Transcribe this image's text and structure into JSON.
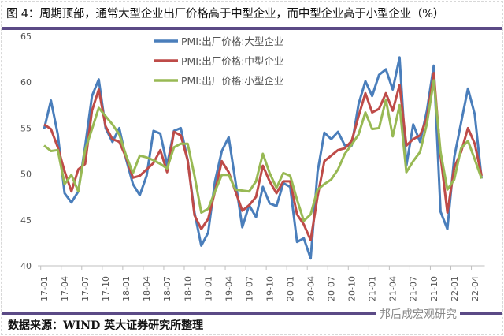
{
  "title": "图 4：周期顶部，通常大型企业出厂价格高于中型企业，而中型企业高于小型企业（%）",
  "source": "数据来源：WIND  英大证券研究所整理",
  "watermark": "邦后成宏观研究",
  "colors": {
    "accent": "#5b4a86"
  },
  "chart_data": {
    "type": "line",
    "title": "",
    "xlabel": "",
    "ylabel": "",
    "ylim": [
      40,
      65
    ],
    "yticks": [
      40,
      45,
      50,
      55,
      60,
      65
    ],
    "grid": false,
    "legend_placement": "top-center",
    "x_start": "2017-01",
    "x_end": "2022-05",
    "xtick_labels": [
      "17-01",
      "17-04",
      "17-07",
      "17-10",
      "18-01",
      "18-04",
      "18-07",
      "18-10",
      "19-01",
      "19-04",
      "19-07",
      "19-10",
      "20-01",
      "20-04",
      "20-07",
      "20-10",
      "21-01",
      "21-04",
      "21-07",
      "21-10",
      "22-01",
      "22-04"
    ],
    "series": [
      {
        "name": "PMI:出厂价格:大型企业",
        "color": "#4a7ebb",
        "values": [
          54.9,
          58.0,
          54.3,
          47.9,
          46.9,
          48.1,
          53.0,
          58.5,
          60.3,
          55.0,
          53.5,
          55.0,
          51.6,
          48.9,
          47.7,
          49.8,
          54.7,
          54.4,
          51.0,
          54.7,
          55.0,
          51.5,
          45.8,
          42.2,
          43.6,
          49.2,
          52.5,
          54.0,
          49.2,
          44.2,
          46.6,
          45.3,
          48.6,
          46.8,
          46.5,
          49.0,
          48.6,
          42.6,
          43.0,
          40.8,
          50.2,
          54.5,
          53.8,
          54.6,
          53.1,
          53.1,
          57.6,
          60.1,
          58.5,
          60.8,
          61.4,
          59.2,
          62.7,
          50.9,
          55.4,
          53.5,
          56.9,
          61.8,
          45.9,
          44.0,
          51.8,
          55.6,
          59.3,
          56.5,
          49.5
        ]
      },
      {
        "name": "PMI:出厂价格:中型企业",
        "color": "#be4b48",
        "values": [
          55.4,
          54.9,
          52.9,
          50.3,
          48.1,
          50.5,
          51.1,
          56.9,
          59.2,
          55.2,
          53.8,
          53.5,
          51.8,
          49.6,
          49.8,
          50.5,
          51.2,
          52.6,
          50.2,
          54.6,
          54.2,
          51.5,
          45.5,
          44.0,
          45.1,
          48.1,
          51.4,
          50.2,
          48.1,
          46.0,
          46.6,
          47.5,
          50.9,
          49.2,
          47.9,
          49.2,
          49.2,
          45.6,
          44.5,
          42.8,
          47.5,
          51.4,
          52.0,
          52.6,
          52.8,
          53.6,
          56.3,
          58.8,
          56.7,
          57.1,
          58.8,
          56.9,
          59.7,
          53.1,
          53.8,
          54.2,
          56.1,
          61.0,
          52.0,
          45.8,
          50.7,
          52.4,
          55.0,
          53.3,
          49.8
        ]
      },
      {
        "name": "PMI:出厂价格:小型企业",
        "color": "#98b954",
        "values": [
          53.1,
          52.5,
          52.6,
          48.9,
          49.9,
          48.1,
          52.6,
          54.9,
          57.2,
          56.3,
          55.4,
          54.3,
          52.0,
          50.1,
          52.0,
          51.8,
          51.5,
          51.1,
          50.6,
          52.9,
          53.3,
          53.3,
          49.8,
          45.8,
          46.2,
          48.1,
          49.9,
          49.9,
          48.3,
          48.2,
          48.1,
          49.2,
          52.2,
          50.1,
          48.5,
          50.1,
          49.8,
          47.2,
          44.9,
          45.6,
          48.3,
          48.9,
          49.4,
          50.5,
          52.2,
          53.2,
          54.3,
          56.7,
          54.9,
          55.0,
          58.1,
          54.1,
          57.5,
          50.2,
          51.4,
          52.4,
          55.5,
          60.2,
          52.4,
          48.3,
          49.4,
          52.8,
          53.6,
          51.6,
          49.5
        ]
      }
    ]
  }
}
